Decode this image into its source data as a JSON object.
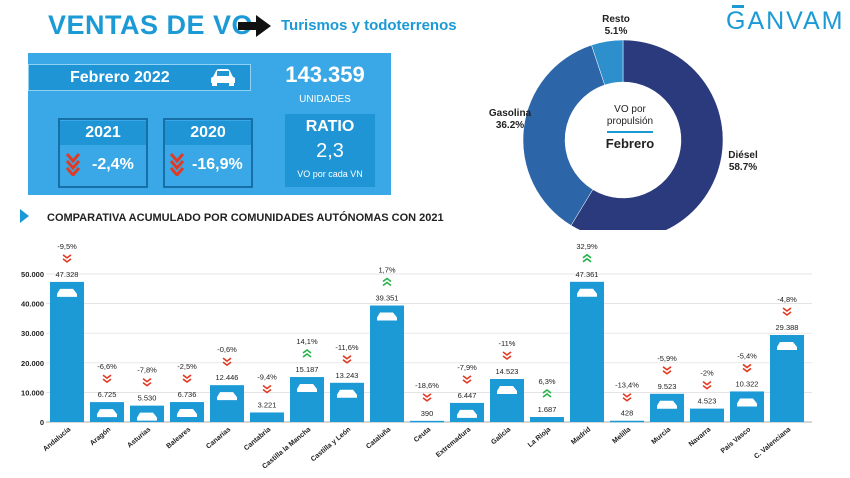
{
  "header": {
    "title": "VENTAS DE VO",
    "subtitle": "Turismos y todoterrenos",
    "logo_text": "GANVAM",
    "brand_color": "#1b9ad6"
  },
  "summary": {
    "month": "Febrero 2022",
    "units_value": "143.359",
    "units_label": "UNIDADES",
    "comparisons": [
      {
        "year": "2021",
        "change": "-2,4%"
      },
      {
        "year": "2020",
        "change": "-16,9%"
      }
    ],
    "ratio_label": "RATIO",
    "ratio_value": "2,3",
    "ratio_note": "VO por cada VN"
  },
  "section_title": "COMPARATIVA ACUMULADO POR COMUNIDADES AUTÓNOMAS CON 2021",
  "chart_data": [
    {
      "type": "pie",
      "center_title": "VO por propulsión",
      "center_subtitle": "Febrero",
      "slices": [
        {
          "label": "Diésel",
          "value": 58.7,
          "display": "58.7%",
          "color": "#2a3a7c"
        },
        {
          "label": "Gasolina",
          "value": 36.2,
          "display": "36.2%",
          "color": "#2c65a8"
        },
        {
          "label": "Resto",
          "value": 5.1,
          "display": "5.1%",
          "color": "#2e8fcd"
        }
      ]
    },
    {
      "type": "bar",
      "title": "COMPARATIVA ACUMULADO POR COMUNIDADES AUTÓNOMAS CON 2021",
      "ylim": [
        0,
        50000
      ],
      "yticks": [
        "0",
        "10.000",
        "20.000",
        "30.000",
        "40.000",
        "50.000"
      ],
      "grid": true,
      "bar_color": "#1b9ad6",
      "categories": [
        "Andalucía",
        "Aragón",
        "Asturias",
        "Baleares",
        "Canarias",
        "Cantabria",
        "Castilla la Mancha",
        "Castilla y León",
        "Cataluña",
        "Ceuta",
        "Extremadura",
        "Galicia",
        "La Rioja",
        "Madrid",
        "Melilla",
        "Murcia",
        "Navarra",
        "País Vasco",
        "C. Valenciana"
      ],
      "values": [
        47328,
        6725,
        5530,
        6736,
        12446,
        3221,
        15187,
        13243,
        39351,
        390,
        6447,
        14523,
        1687,
        47361,
        428,
        9523,
        4523,
        10322,
        29388
      ],
      "value_labels": [
        "47.328",
        "6.725",
        "5.530",
        "6.736",
        "12.446",
        "3.221",
        "15.187",
        "13.243",
        "39.351",
        "390",
        "6.447",
        "14.523",
        "1.687",
        "47.361",
        "428",
        "9.523",
        "4.523",
        "10.322",
        "29.388"
      ],
      "changes": [
        "-9,5%",
        "-6,6%",
        "-7,8%",
        "-2,5%",
        "-0,6%",
        "-9,4%",
        "14,1%",
        "-11,6%",
        "1,7%",
        "-18,6%",
        "-7,9%",
        "-11%",
        "6,3%",
        "32,9%",
        "-13,4%",
        "-5,9%",
        "-2%",
        "-5,4%",
        "-4,8%"
      ],
      "up_color": "#27b34a",
      "down_color": "#e03b24"
    }
  ]
}
